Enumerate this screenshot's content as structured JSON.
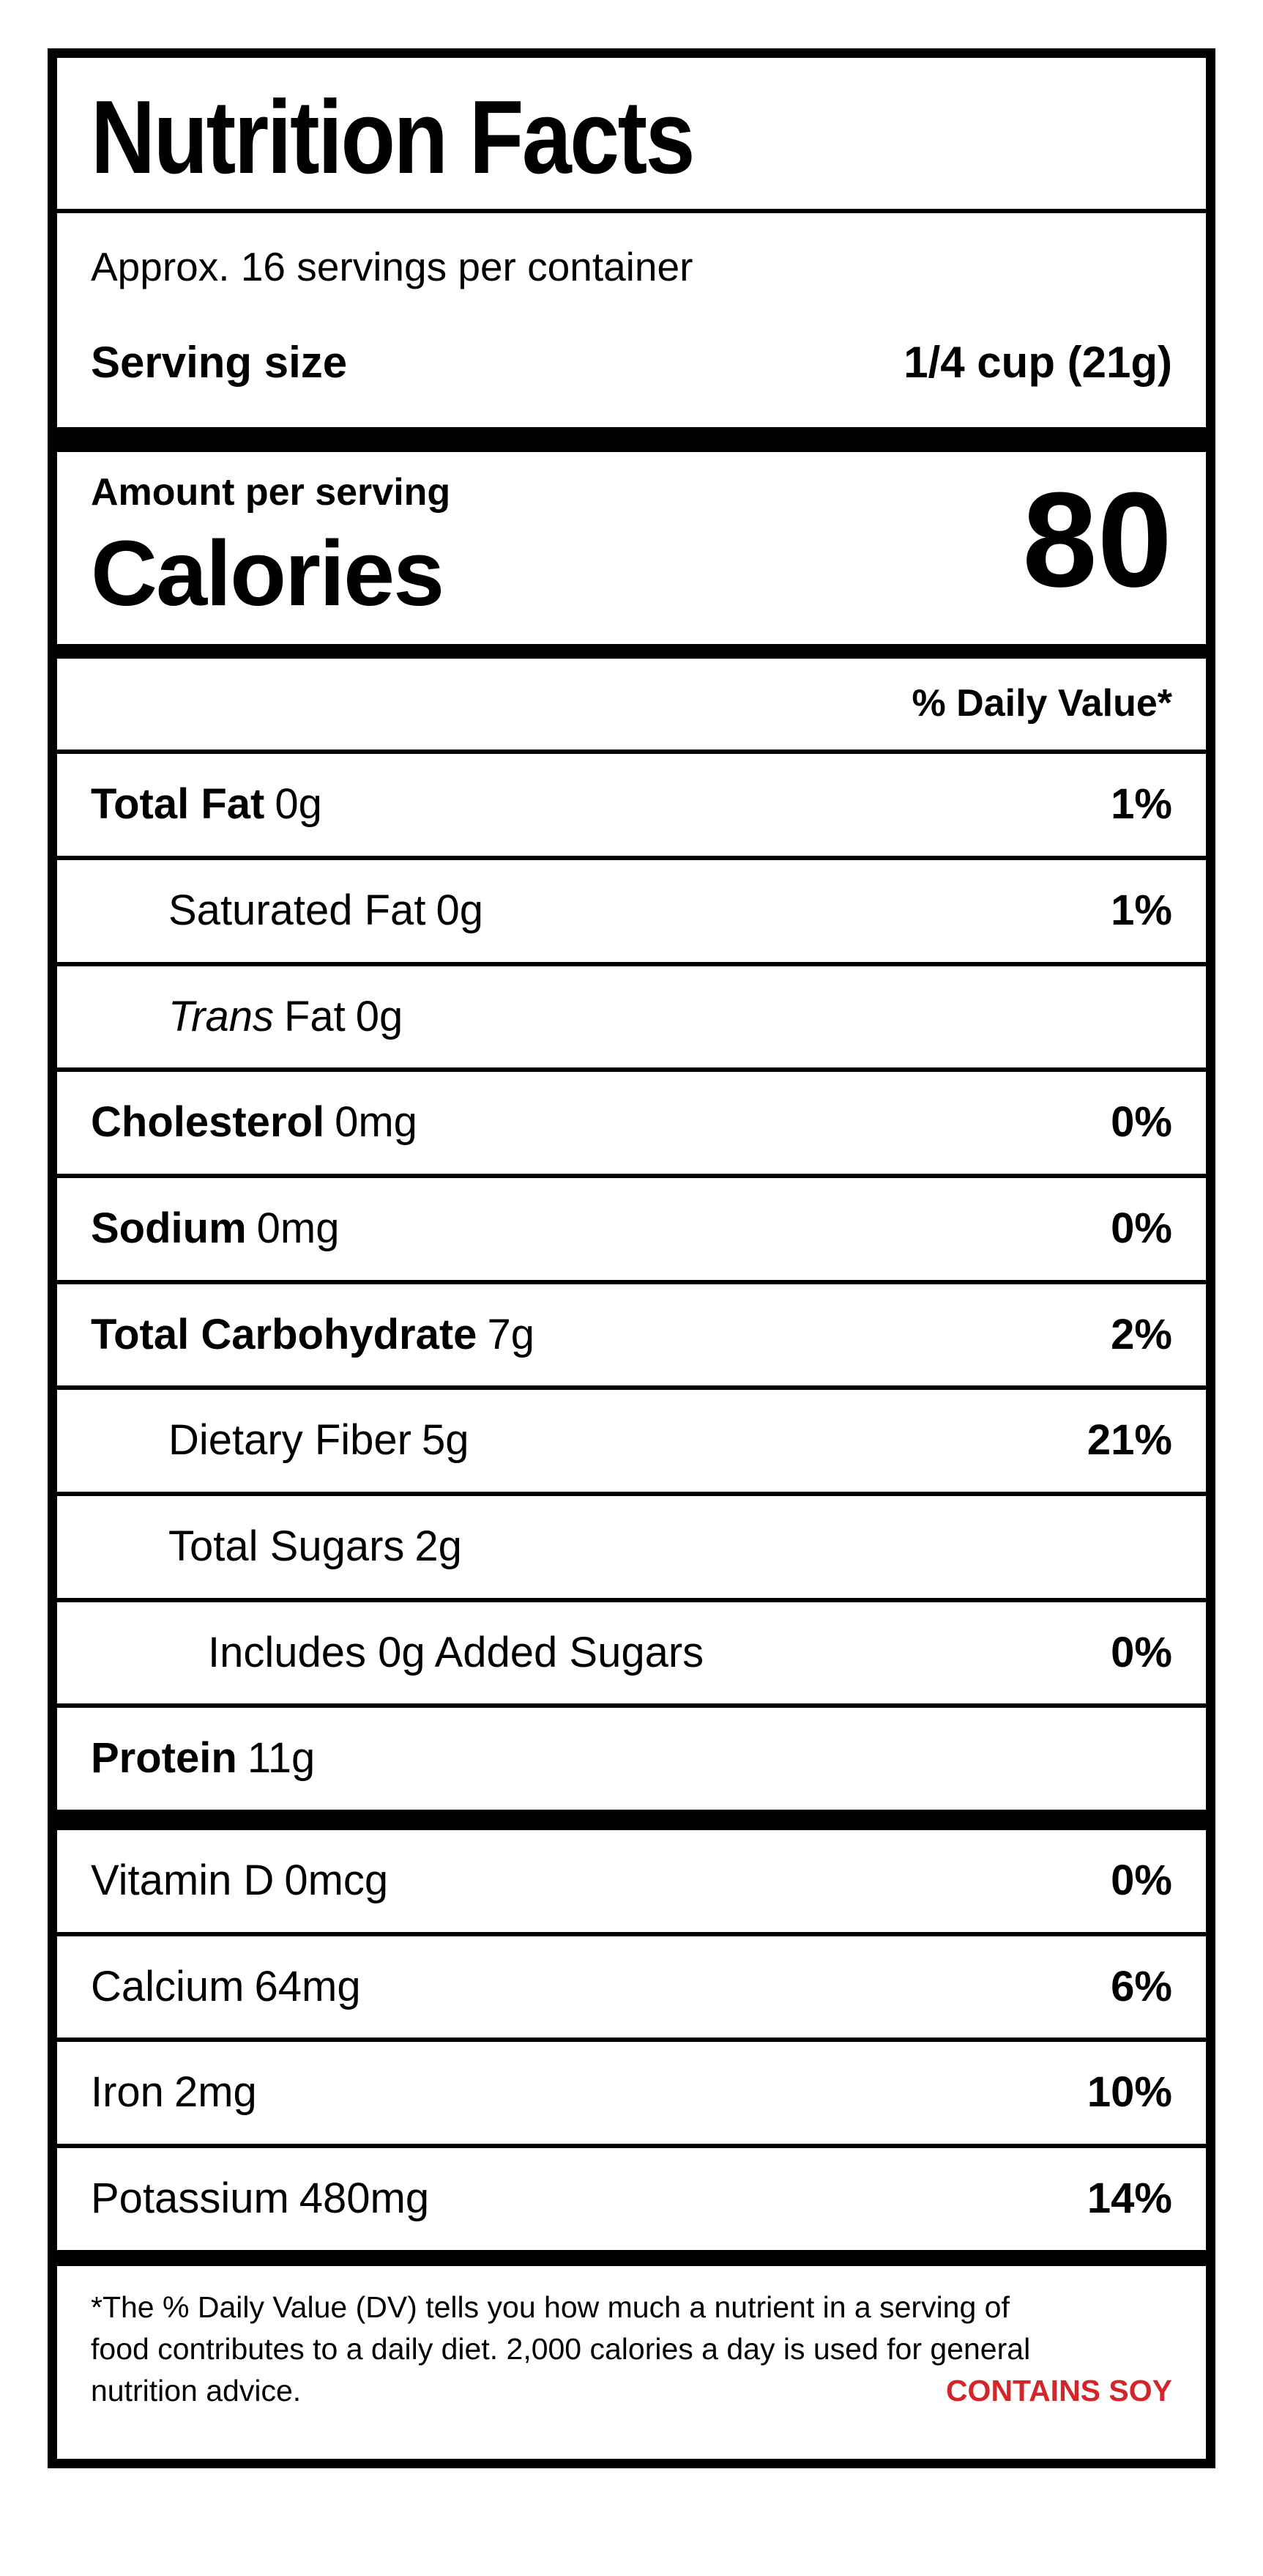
{
  "title": "Nutrition Facts",
  "servings_per_container": "Approx. 16 servings per container",
  "serving_size": {
    "label": "Serving size",
    "value": "1/4 cup (21g)"
  },
  "calories": {
    "eyebrow": "Amount per serving",
    "label": "Calories",
    "value": "80"
  },
  "daily_value_header": "% Daily Value*",
  "nutrients": [
    {
      "name": "Total Fat",
      "amount": "0g",
      "dv": "1%"
    },
    {
      "name": "Saturated Fat",
      "amount": "0g",
      "dv": "1%"
    },
    {
      "name_italic": "Trans",
      "name": "Fat",
      "amount": "0g",
      "dv": ""
    },
    {
      "name": "Cholesterol",
      "amount": "0mg",
      "dv": "0%"
    },
    {
      "name": "Sodium",
      "amount": "0mg",
      "dv": "0%"
    },
    {
      "name": "Total Carbohydrate",
      "amount": "7g",
      "dv": "2%"
    },
    {
      "name": "Dietary Fiber",
      "amount": "5g",
      "dv": "21%"
    },
    {
      "name": "Total Sugars",
      "amount": "2g",
      "dv": ""
    },
    {
      "name": "Includes 0g Added Sugars",
      "amount": "",
      "dv": "0%"
    },
    {
      "name": "Protein",
      "amount": "11g",
      "dv": ""
    }
  ],
  "vitamins": [
    {
      "name": "Vitamin D",
      "amount": "0mcg",
      "dv": "0%"
    },
    {
      "name": "Calcium",
      "amount": "64mg",
      "dv": "6%"
    },
    {
      "name": "Iron",
      "amount": "2mg",
      "dv": "10%"
    },
    {
      "name": "Potassium",
      "amount": "480mg",
      "dv": "14%"
    }
  ],
  "footnote": {
    "lines": [
      "*The % Daily Value (DV) tells you how much a nutrient in a serving of",
      "food contributes to a daily diet. 2,000 calories a day is used for general",
      "nutrition advice."
    ],
    "allergen": "CONTAINS SOY"
  },
  "colors": {
    "text": "#000000",
    "background": "#ffffff",
    "allergen_red": "#d2262b"
  }
}
